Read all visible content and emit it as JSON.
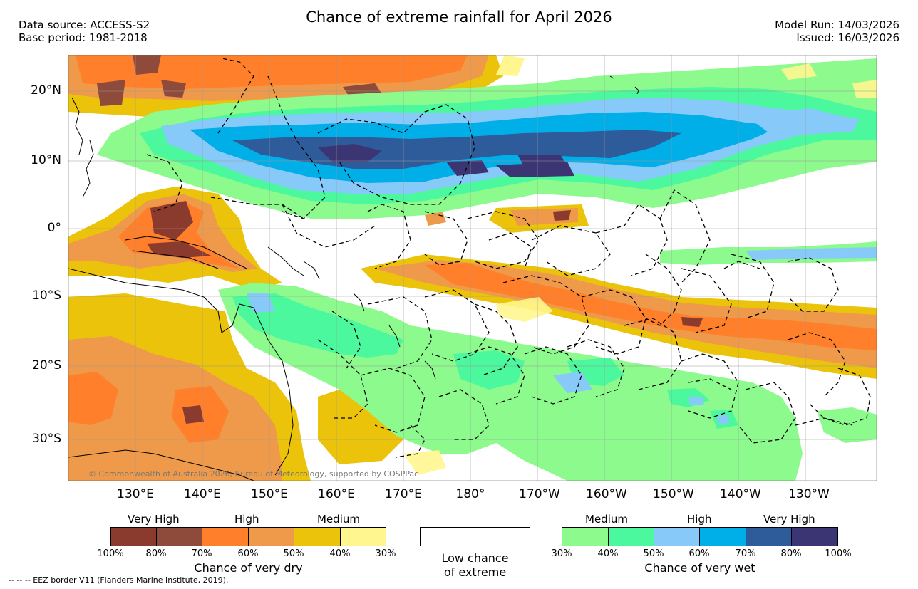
{
  "title": "Chance of extreme rainfall for April 2026",
  "meta_left": {
    "source": "Data source: ACCESS-S2",
    "base": "Base period: 1981-2018"
  },
  "meta_right": {
    "run": "Model Run: 14/03/2026",
    "issued": "Issued: 16/03/2026"
  },
  "lon_labels": [
    "130°E",
    "140°E",
    "150°E",
    "160°E",
    "170°E",
    "180°",
    "170°W",
    "160°W",
    "150°W",
    "140°W",
    "130°W"
  ],
  "lat_labels": [
    "20°N",
    "10°N",
    "0°",
    "10°S",
    "20°S",
    "30°S"
  ],
  "copyright": "© Commonwealth of Australia 2026, Bureau of Meteorology, supported by COSPPac",
  "dry_legend": {
    "categories": [
      "Very High",
      "High",
      "Medium"
    ],
    "ticks": [
      "100%",
      "80%",
      "70%",
      "60%",
      "50%",
      "40%",
      "30%"
    ],
    "caption": "Chance of very dry",
    "colors": [
      "#8b3a2e",
      "#8e4a3b",
      "#ff7f2a",
      "#ee9a4a",
      "#ebc30a",
      "#fff68f"
    ]
  },
  "low_legend": {
    "caption_line1": "Low chance",
    "caption_line2": "of extreme"
  },
  "wet_legend": {
    "categories": [
      "Medium",
      "High",
      "Very High"
    ],
    "ticks": [
      "30%",
      "40%",
      "50%",
      "60%",
      "70%",
      "80%",
      "100%"
    ],
    "caption": "Chance of very wet",
    "colors": [
      "#8cfa8c",
      "#4bf89e",
      "#87cafa",
      "#00aee8",
      "#2e5c9a",
      "#3b3574"
    ]
  },
  "footer": "--  --  -- EEZ border V11 (Flanders Marine Institute, 2019).",
  "colors": {
    "very_dry": "#8b3a2e",
    "dry_high": "#ff7f2a",
    "dry_mid": "#ee9a4a",
    "dry_med": "#ebc30a",
    "dry_low": "#fff68f",
    "wet_low": "#8cfa8c",
    "wet_med": "#4bf89e",
    "wet_mid": "#87cafa",
    "wet_high": "#00aee8",
    "wet_vhigh": "#2e5c9a",
    "wet_top": "#3b3574"
  }
}
